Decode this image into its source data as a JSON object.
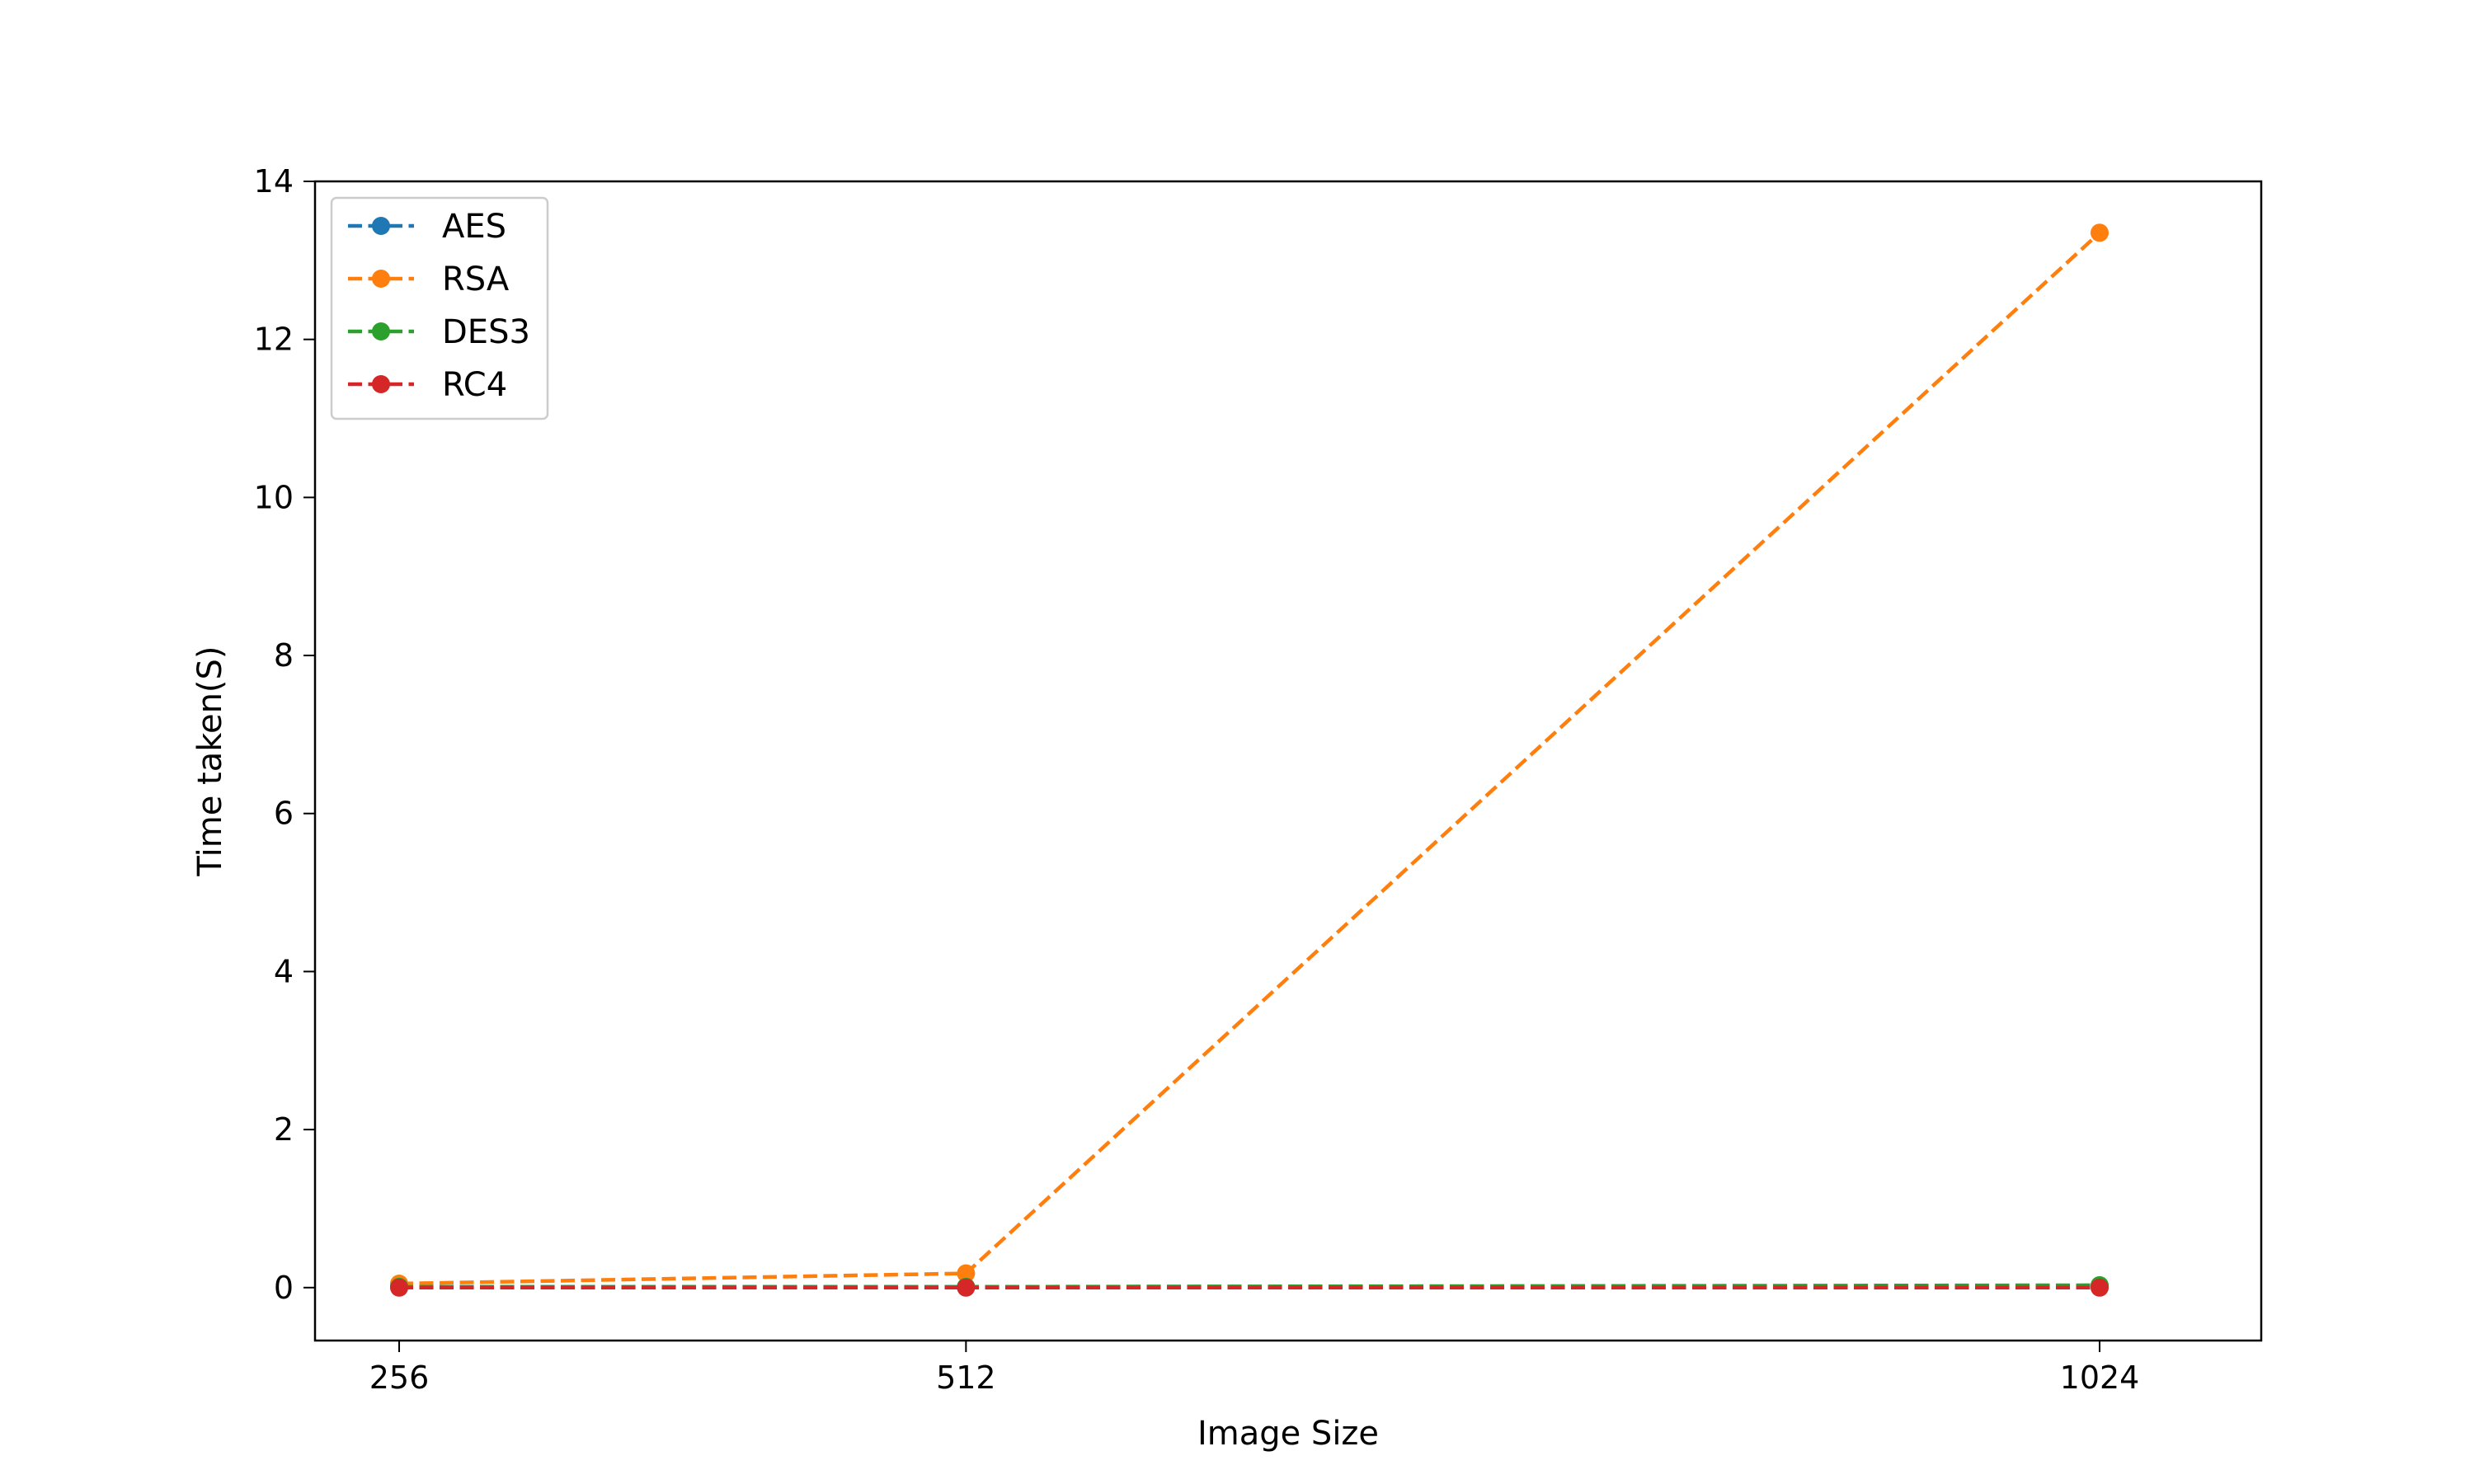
{
  "chart_data": {
    "type": "line",
    "title": "",
    "xlabel": "Image Size",
    "ylabel": "Time taken(S)",
    "x": [
      256,
      512,
      1024
    ],
    "x_tick_labels": [
      "256",
      "512",
      "1024"
    ],
    "xlim": [
      218,
      1097
    ],
    "ylim": [
      -0.67,
      14
    ],
    "y_ticks": [
      0,
      2,
      4,
      6,
      8,
      10,
      12,
      14
    ],
    "grid": false,
    "legend_position": "top-left",
    "line_style": "dashed",
    "marker": "circle",
    "series": [
      {
        "name": "AES",
        "color": "#1f77b4",
        "values": [
          0.01,
          0.01,
          0.02
        ]
      },
      {
        "name": "RSA",
        "color": "#ff7f0e",
        "values": [
          0.05,
          0.18,
          13.35
        ]
      },
      {
        "name": "DES3",
        "color": "#2ca02c",
        "values": [
          0.01,
          0.01,
          0.03
        ]
      },
      {
        "name": "RC4",
        "color": "#d62728",
        "values": [
          0.0,
          0.0,
          0.0
        ]
      }
    ]
  }
}
